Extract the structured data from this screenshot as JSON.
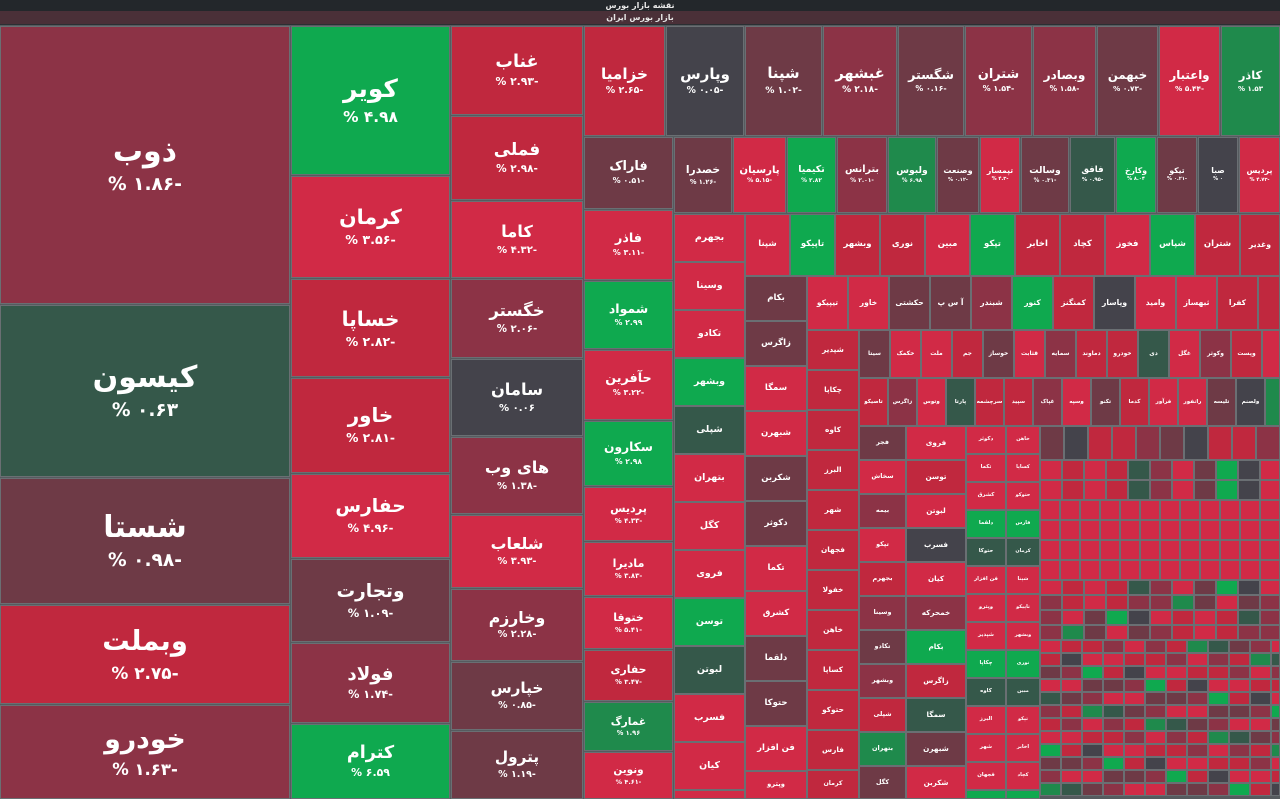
{
  "header": {
    "title": "نقشه بازار بورس",
    "subtitle": "بازار بورس ایران"
  },
  "colors": {
    "strong_green": "#0fa94f",
    "green": "#1f8a4c",
    "dark_green": "#35584a",
    "neutral": "#44434b",
    "light_red": "#6e3a46",
    "red": "#8c3346",
    "strong_red": "#c0283e",
    "deep_red": "#d12a46"
  },
  "tiles": [
    {
      "sym": "ذوب",
      "pct": "-۱.۸۶ %",
      "c": "#8c3346"
    },
    {
      "sym": "کیسون",
      "pct": "۰.۶۳ %",
      "c": "#35584a"
    },
    {
      "sym": "شستا",
      "pct": "-۰.۹۸ %",
      "c": "#6e3a46"
    },
    {
      "sym": "وبملت",
      "pct": "-۲.۷۵ %",
      "c": "#c0283e"
    },
    {
      "sym": "خودرو",
      "pct": "-۱.۶۳ %",
      "c": "#8c3346"
    },
    {
      "sym": "کویر",
      "pct": "۴.۹۸ %",
      "c": "#0fa94f"
    },
    {
      "sym": "کرمان",
      "pct": "-۳.۵۶ %",
      "c": "#d12a46"
    },
    {
      "sym": "خساپا",
      "pct": "-۲.۸۲ %",
      "c": "#c0283e"
    },
    {
      "sym": "خاور",
      "pct": "-۲.۸۱ %",
      "c": "#c0283e"
    },
    {
      "sym": "حفارس",
      "pct": "-۴.۹۶ %",
      "c": "#d12a46"
    },
    {
      "sym": "وتجارت",
      "pct": "-۱.۰۹ %",
      "c": "#6e3a46"
    },
    {
      "sym": "فولاد",
      "pct": "-۱.۷۴ %",
      "c": "#8c3346"
    },
    {
      "sym": "کترام",
      "pct": "۶.۵۹ %",
      "c": "#0fa94f"
    },
    {
      "sym": "غناب",
      "pct": "-۲.۹۳ %",
      "c": "#c0283e"
    },
    {
      "sym": "فملی",
      "pct": "-۲.۹۸ %",
      "c": "#c0283e"
    },
    {
      "sym": "کاما",
      "pct": "-۴.۳۲ %",
      "c": "#d12a46"
    },
    {
      "sym": "خگستر",
      "pct": "-۲.۰۶ %",
      "c": "#8c3346"
    },
    {
      "sym": "سامان",
      "pct": "۰.۰۶ %",
      "c": "#44434b"
    },
    {
      "sym": "های وب",
      "pct": "-۱.۳۸ %",
      "c": "#8c3346"
    },
    {
      "sym": "شلعاب",
      "pct": "-۳.۹۳ %",
      "c": "#d12a46"
    },
    {
      "sym": "وخارزم",
      "pct": "-۲.۲۸ %",
      "c": "#8c3346"
    },
    {
      "sym": "خپارس",
      "pct": "-۰.۸۵ %",
      "c": "#6e3a46"
    },
    {
      "sym": "پترول",
      "pct": "-۱.۱۹ %",
      "c": "#6e3a46"
    },
    {
      "sym": "خزامیا",
      "pct": "-۲.۶۵ %",
      "c": "#c0283e"
    },
    {
      "sym": "وپارس",
      "pct": "-۰.۰۵ %",
      "c": "#44434b"
    },
    {
      "sym": "شپنا",
      "pct": "-۱.۰۲ %",
      "c": "#6e3a46"
    },
    {
      "sym": "غبشهر",
      "pct": "-۲.۱۸ %",
      "c": "#8c3346"
    },
    {
      "sym": "شگستر",
      "pct": "-۰.۱۶ %",
      "c": "#6e3a46"
    },
    {
      "sym": "شتران",
      "pct": "-۱.۵۴ %",
      "c": "#8c3346"
    },
    {
      "sym": "وبصادر",
      "pct": "-۱.۵۸ %",
      "c": "#8c3346"
    },
    {
      "sym": "خبهمن",
      "pct": "-۰.۷۳ %",
      "c": "#6e3a46"
    },
    {
      "sym": "واعتبار",
      "pct": "-۵.۴۴ %",
      "c": "#d12a46"
    },
    {
      "sym": "کاذر",
      "pct": "۱.۵۳ %",
      "c": "#1f8a4c"
    },
    {
      "sym": "فاراک",
      "pct": "-۰.۵۱ %",
      "c": "#6e3a46"
    },
    {
      "sym": "فاذر",
      "pct": "-۳.۱۱ %",
      "c": "#d12a46"
    },
    {
      "sym": "شمواد",
      "pct": "۲.۹۹ %",
      "c": "#0fa94f"
    },
    {
      "sym": "حآفرین",
      "pct": "-۳.۲۲ %",
      "c": "#d12a46"
    },
    {
      "sym": "سکارون",
      "pct": "۲.۹۸ %",
      "c": "#0fa94f"
    },
    {
      "sym": "پردیس",
      "pct": "-۴.۳۳ %",
      "c": "#d12a46"
    },
    {
      "sym": "ماديرا",
      "pct": "-۳.۸۳ %",
      "c": "#d12a46"
    },
    {
      "sym": "ختوقا",
      "pct": "-۵.۴۱ %",
      "c": "#d12a46"
    },
    {
      "sym": "حفاری",
      "pct": "-۳.۴۷ %",
      "c": "#c0283e"
    },
    {
      "sym": "غمارگ",
      "pct": "۱.۹۶ %",
      "c": "#1f8a4c"
    },
    {
      "sym": "ونوین",
      "pct": "-۴.۶۱ %",
      "c": "#d12a46"
    },
    {
      "sym": "خصدرا",
      "pct": "-۱.۲۶ %",
      "c": "#6e3a46"
    },
    {
      "sym": "پارسیان",
      "pct": "-۵.۱۵ %",
      "c": "#d12a46"
    },
    {
      "sym": "تکیمیا",
      "pct": "۲.۸۲ %",
      "c": "#0fa94f"
    },
    {
      "sym": "بترانس",
      "pct": "-۲.۰۱ %",
      "c": "#8c3346"
    },
    {
      "sym": "ولبوس",
      "pct": "۶.۹۸ %",
      "c": "#1f8a4c"
    },
    {
      "sym": "وصنعت",
      "pct": "-۰.۱۲ %",
      "c": "#6e3a46"
    },
    {
      "sym": "تپمسار",
      "pct": "-۴.۳ %",
      "c": "#d12a46"
    },
    {
      "sym": "وسالت",
      "pct": "-۰.۳۱ %",
      "c": "#6e3a46"
    },
    {
      "sym": "فافق",
      "pct": "-۰.۹۵ %",
      "c": "#35584a"
    },
    {
      "sym": "وکارخ",
      "pct": "۸.۰۴ %",
      "c": "#0fa94f"
    },
    {
      "sym": "تیکو",
      "pct": "-۰.۲۱ %",
      "c": "#6e3a46"
    },
    {
      "sym": "صبا",
      "pct": "۰ %",
      "c": "#44434b"
    },
    {
      "sym": "پردیس",
      "pct": "-۴.۷۳ %",
      "c": "#d12a46"
    }
  ],
  "mini": [
    "بجهرم",
    "وسینا",
    "تکادو",
    "وبشهر",
    "شپلی",
    "بتهران",
    "کگل",
    "فروی",
    "توسن",
    "لبوتن",
    "فسرب",
    "کیان",
    "خمحرکه",
    "بکام",
    "زاگرس",
    "سمگا",
    "شبهرن",
    "شکربن",
    "دکوثر",
    "تکما",
    "کشرق",
    "دلقما",
    "حتوکا",
    "فن افزار",
    "وپترو",
    "شپدیر",
    "چکاپا",
    "کاوه",
    "البرز",
    "شهر",
    "فجهان",
    "خفولا",
    "خاهن",
    "کساپا",
    "حتوکو",
    "فارس",
    "کرمان",
    "شپنا",
    "تاپیکو",
    "وبشهر",
    "نوری",
    "مبین",
    "تپکو",
    "اخابر",
    "کچاد",
    "فخوز",
    "شپاس",
    "شتران",
    "وغدیر",
    "تیپیکو",
    "خاور",
    "حکشتی",
    "آ س پ",
    "شبندر",
    "کنور",
    "کمنگنز",
    "وپاسار",
    "وامید",
    "ثبهساز",
    "کفرا",
    "وساپا",
    "سیتا",
    "خکمک",
    "ملت",
    "جم",
    "خوساز",
    "قثابت",
    "سمایه",
    "دماوند",
    "خودرو",
    "دی",
    "غگل",
    "وکوثر",
    "وپست",
    "پاسا",
    "تاصیکو",
    "زاگرس",
    "وتوس",
    "پارتا",
    "سرچشمه",
    "سپید",
    "غپاک",
    "وسپه",
    "تکنو",
    "کدما",
    "فرآور",
    "رانفور",
    "تلیسه",
    "ولصنم",
    "کیمیا",
    "فجر",
    "سخاش",
    "بیمه",
    "تپکو"
  ]
}
